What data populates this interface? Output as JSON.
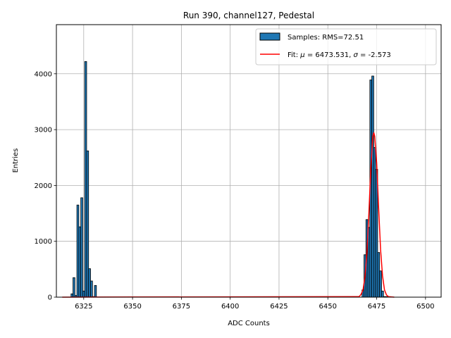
{
  "chart_data": {
    "type": "bar",
    "title": "Run 390, channel127, Pedestal",
    "xlabel": "ADC Counts",
    "ylabel": "Entries",
    "xlim": [
      6311,
      6508
    ],
    "ylim": [
      0,
      4880
    ],
    "xticks": [
      6325,
      6350,
      6375,
      6400,
      6425,
      6450,
      6475,
      6500
    ],
    "yticks": [
      0,
      1000,
      2000,
      3000,
      4000
    ],
    "grid": true,
    "legend_position": "upper right",
    "bar_width": 1,
    "series": [
      {
        "name": "Samples: RMS=72.51",
        "kind": "histogram",
        "color": "#1f77b4",
        "edgecolor": "#000000",
        "bins": [
          6319,
          6320,
          6321,
          6322,
          6323,
          6324,
          6325,
          6326,
          6327,
          6328,
          6329,
          6330,
          6331,
          6468,
          6469,
          6470,
          6471,
          6472,
          6473,
          6474,
          6475,
          6476,
          6477,
          6478,
          6479,
          6480
        ],
        "values": [
          60,
          350,
          30,
          1650,
          1260,
          1780,
          110,
          4220,
          2620,
          510,
          290,
          10,
          210,
          130,
          760,
          1390,
          1250,
          3890,
          3960,
          2680,
          2290,
          800,
          470,
          110,
          10,
          10
        ]
      },
      {
        "name": "Fit: μ = 6473.531, σ = -2.573",
        "kind": "line",
        "color": "#ff0000",
        "x": [
          6314,
          6466,
          6467,
          6468,
          6469,
          6470,
          6471,
          6472,
          6473,
          6473.5,
          6474,
          6475,
          6476,
          6477,
          6478,
          6479,
          6480,
          6481,
          6484
        ],
        "y": [
          0,
          10,
          50,
          130,
          360,
          800,
          1500,
          2300,
          2870,
          2950,
          2880,
          2400,
          1600,
          850,
          380,
          130,
          40,
          10,
          0
        ]
      }
    ],
    "legend": {
      "samples_prefix": "Samples: RMS=72.51",
      "fit_prefix": "Fit: ",
      "fit_mu_symbol": "μ",
      "fit_mid": " = 6473.531, ",
      "fit_sigma_symbol": "σ",
      "fit_suffix": " = -2.573"
    }
  }
}
